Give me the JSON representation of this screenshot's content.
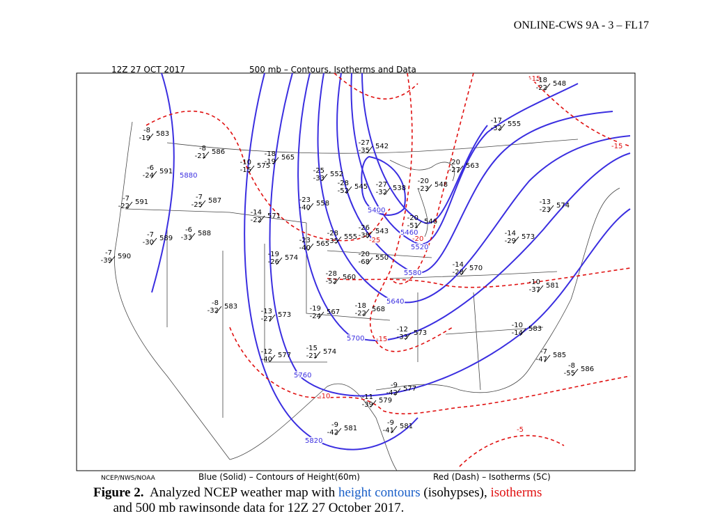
{
  "header": {
    "running_head": "ONLINE-CWS 9A - 3 – FL17"
  },
  "map": {
    "title_left": "12Z 27 OCT 2017",
    "title_center": "500 mb – Contours, Isotherms and Data",
    "footer_left": "NCEP/NWS/NOAA",
    "footer_center": "Blue (Solid) – Contours of Height(60m)",
    "footer_right": "Red (Dash) – Isotherms (5C)",
    "contour_labels": [
      "5400",
      "5460",
      "5520",
      "5580",
      "5640",
      "5700",
      "5760",
      "5820",
      "5880"
    ],
    "isotherm_labels": [
      "-15",
      "-15",
      "-20",
      "-25",
      "-15",
      "-10",
      "-5"
    ],
    "stations": [
      {
        "height": "583",
        "temp": "-8",
        "dewpoint": "-19"
      },
      {
        "height": "586",
        "temp": "-8",
        "dewpoint": "-21"
      },
      {
        "height": "591",
        "temp": "-6",
        "dewpoint": "-24"
      },
      {
        "height": "591",
        "temp": "-7",
        "dewpoint": "-22"
      },
      {
        "height": "587",
        "temp": "-7",
        "dewpoint": "-25"
      },
      {
        "height": "575",
        "temp": "-10",
        "dewpoint": "-15"
      },
      {
        "height": "565",
        "temp": "-18",
        "dewpoint": "-19"
      },
      {
        "height": "552",
        "temp": "-25",
        "dewpoint": "-33"
      },
      {
        "height": "545",
        "temp": "-28",
        "dewpoint": "-52"
      },
      {
        "height": "538",
        "temp": "-27",
        "dewpoint": "-32"
      },
      {
        "height": "542",
        "temp": "-27",
        "dewpoint": "-35"
      },
      {
        "height": "548",
        "temp": "-20",
        "dewpoint": "-23"
      },
      {
        "height": "563",
        "temp": "-20",
        "dewpoint": "-27"
      },
      {
        "height": "558",
        "temp": "-23",
        "dewpoint": "-40"
      },
      {
        "height": "571",
        "temp": "-14",
        "dewpoint": "-22"
      },
      {
        "height": "589",
        "temp": "-7",
        "dewpoint": "-30"
      },
      {
        "height": "590",
        "temp": "-7",
        "dewpoint": "-39"
      },
      {
        "height": "588",
        "temp": "-6",
        "dewpoint": "-33"
      },
      {
        "height": "574",
        "temp": "-19",
        "dewpoint": "-26"
      },
      {
        "height": "565",
        "temp": "-23",
        "dewpoint": "-40"
      },
      {
        "height": "555",
        "temp": "-28",
        "dewpoint": "-35"
      },
      {
        "height": "543",
        "temp": "-26",
        "dewpoint": "-38"
      },
      {
        "height": "546",
        "temp": "-20",
        "dewpoint": "-51"
      },
      {
        "height": "550",
        "temp": "-20",
        "dewpoint": "-68"
      },
      {
        "height": "560",
        "temp": "-28",
        "dewpoint": "-52"
      },
      {
        "height": "583",
        "temp": "-8",
        "dewpoint": "-32"
      },
      {
        "height": "573",
        "temp": "-13",
        "dewpoint": "-27"
      },
      {
        "height": "567",
        "temp": "-19",
        "dewpoint": "-24"
      },
      {
        "height": "568",
        "temp": "-18",
        "dewpoint": "-22"
      },
      {
        "height": "573",
        "temp": "-12",
        "dewpoint": "-33"
      },
      {
        "height": "577",
        "temp": "-12",
        "dewpoint": "-40"
      },
      {
        "height": "574",
        "temp": "-15",
        "dewpoint": "-21"
      },
      {
        "height": "577",
        "temp": "-9",
        "dewpoint": "-42"
      },
      {
        "height": "579",
        "temp": "-11",
        "dewpoint": "-39"
      },
      {
        "height": "581",
        "temp": "-9",
        "dewpoint": "-41"
      },
      {
        "height": "581",
        "temp": "-9",
        "dewpoint": "-42"
      },
      {
        "height": "570",
        "temp": "-14",
        "dewpoint": "-28"
      },
      {
        "height": "573",
        "temp": "-14",
        "dewpoint": "-29"
      },
      {
        "height": "581",
        "temp": "-10",
        "dewpoint": "-37"
      },
      {
        "height": "583",
        "temp": "-10",
        "dewpoint": "-14"
      },
      {
        "height": "585",
        "temp": "-7",
        "dewpoint": "-47"
      },
      {
        "height": "586",
        "temp": "-8",
        "dewpoint": "-55"
      },
      {
        "height": "574",
        "temp": "-13",
        "dewpoint": "-23"
      },
      {
        "height": "555",
        "temp": "-17",
        "dewpoint": "-32"
      },
      {
        "height": "548",
        "temp": "-18",
        "dewpoint": "-22"
      }
    ]
  },
  "caption": {
    "label": "Figure 2.",
    "text_1": "Analyzed NCEP weather map with ",
    "height_contours": "height contours",
    "text_2": " (isohypses), ",
    "isotherms": "isotherms",
    "text_3": "and 500 mb rawinsonde data for 12Z 27 October 2017."
  }
}
